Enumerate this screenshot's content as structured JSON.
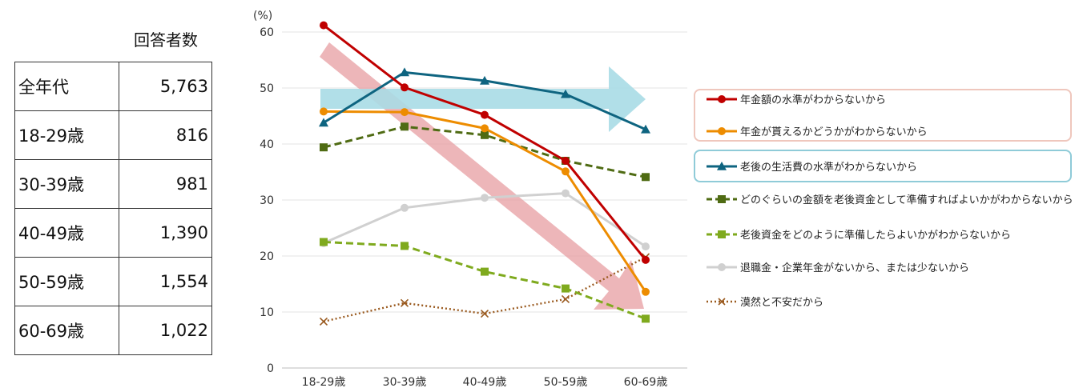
{
  "table": {
    "title": "回答者数",
    "rows": [
      {
        "label": "全年代",
        "value": "5,763"
      },
      {
        "label": "18-29歳",
        "value": "816"
      },
      {
        "label": "30-39歳",
        "value": "981"
      },
      {
        "label": "40-49歳",
        "value": "1,390"
      },
      {
        "label": "50-59歳",
        "value": "1,554"
      },
      {
        "label": "60-69歳",
        "value": "1,022"
      }
    ]
  },
  "chart_data": {
    "type": "line",
    "ylabel": "(%)",
    "ylim": [
      0,
      60
    ],
    "yticks": [
      0,
      10,
      20,
      30,
      40,
      50,
      60
    ],
    "grid": true,
    "legend_position": "right",
    "categories": [
      "18-29歳",
      "30-39歳",
      "40-49歳",
      "50-59歳",
      "60-69歳"
    ],
    "series": [
      {
        "name": "年金額の水準がわからないから",
        "values": [
          61.2,
          50.1,
          45.2,
          37.0,
          19.3
        ],
        "color": "#c00000",
        "marker": "circle",
        "line": "solid"
      },
      {
        "name": "年金が貰えるかどうかがわからないから",
        "values": [
          45.8,
          45.7,
          42.8,
          35.1,
          13.6
        ],
        "color": "#ed8c00",
        "marker": "circle",
        "line": "solid"
      },
      {
        "name": "老後の生活費の水準がわからないから",
        "values": [
          43.8,
          52.8,
          51.3,
          48.9,
          42.6
        ],
        "color": "#0e6480",
        "marker": "triangle",
        "line": "solid"
      },
      {
        "name": "どのぐらいの金額を老後資金として準備すればよいかがわからないから",
        "values": [
          39.4,
          43.1,
          41.6,
          37.0,
          34.1
        ],
        "color": "#4f6b13",
        "marker": "square",
        "line": "dashed"
      },
      {
        "name": "老後資金をどのように準備したらよいかがわからないから",
        "values": [
          22.5,
          21.8,
          17.2,
          14.2,
          8.8
        ],
        "color": "#7faa1e",
        "marker": "square",
        "line": "dashed"
      },
      {
        "name": "退職金・企業年金がないから、または少ないから",
        "values": [
          22.3,
          28.6,
          30.4,
          31.2,
          21.7
        ],
        "color": "#d0d0d0",
        "marker": "circle",
        "line": "solid"
      },
      {
        "name": "漠然と不安だから",
        "values": [
          8.3,
          11.6,
          9.7,
          12.3,
          19.8
        ],
        "color": "#9a5a1f",
        "marker": "x",
        "line": "dotted"
      }
    ]
  }
}
